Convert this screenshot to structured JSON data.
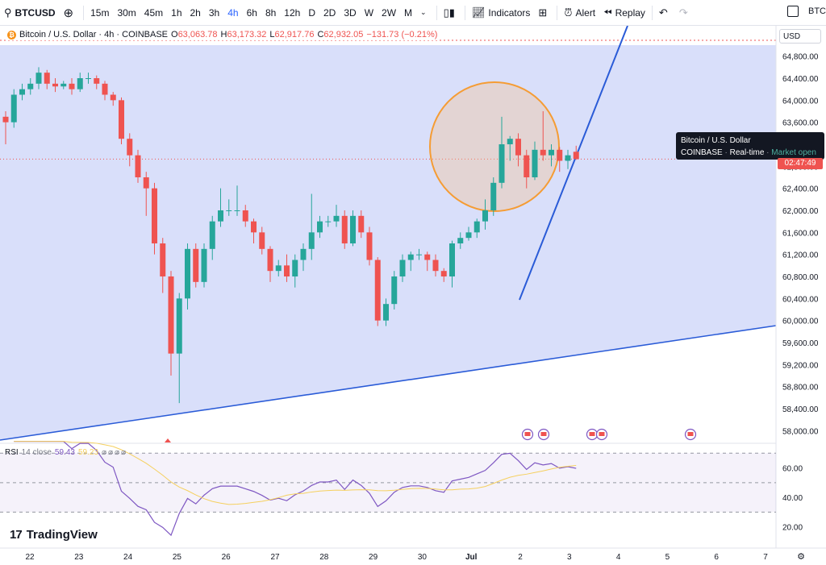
{
  "toolbar": {
    "symbol": "BTCUSD",
    "timeframes": [
      "15m",
      "30m",
      "45m",
      "1h",
      "2h",
      "3h",
      "4h",
      "6h",
      "8h",
      "12h",
      "D",
      "2D",
      "3D",
      "W",
      "2W",
      "M"
    ],
    "active_timeframe": "4h",
    "indicators_label": "Indicators",
    "alert_label": "Alert",
    "replay_label": "Replay",
    "right_label": "BTC"
  },
  "legend": {
    "title": "Bitcoin / U.S. Dollar · 4h · COINBASE",
    "o_label": "O",
    "o_value": "63,063.78",
    "h_label": "H",
    "h_value": "63,173.32",
    "l_label": "L",
    "l_value": "62,917.76",
    "c_label": "C",
    "c_value": "62,932.05",
    "change": "−131.73 (−0.21%)"
  },
  "currency": "USD",
  "tooltip": {
    "line1": "Bitcoin / U.S. Dollar",
    "exchange": "COINBASE",
    "realtime": "Real-time",
    "status": "Market open"
  },
  "price_tag": "02:47:49",
  "rsi": {
    "label": "RSI",
    "params": "14 close",
    "value1": "59.43",
    "value2": "59.23"
  },
  "brand": "TradingView",
  "colors": {
    "up": "#26a69a",
    "down": "#ef5350",
    "channel": "#2a5bd7",
    "fill": "#d5dcfa",
    "circle": "#f59c34",
    "rsi": "#7e57c2",
    "rsi_ma": "#f5d05e"
  },
  "chart_data": {
    "type": "candlestick",
    "price_axis": [
      "64,800.00",
      "64,400.00",
      "64,000.00",
      "63,600.00",
      "63,200.00",
      "62,800.00",
      "62,400.00",
      "62,000.00",
      "61,600.00",
      "61,200.00",
      "60,800.00",
      "60,400.00",
      "60,000.00",
      "59,600.00",
      "59,200.00",
      "58,800.00",
      "58,400.00",
      "58,000.00"
    ],
    "ylim": [
      57800,
      65000
    ],
    "x_ticks": [
      "22",
      "23",
      "24",
      "25",
      "26",
      "27",
      "28",
      "29",
      "30",
      "Jul",
      "2",
      "3",
      "4",
      "5",
      "6",
      "7"
    ],
    "candles": [
      [
        63700,
        63600,
        63200,
        63800
      ],
      [
        63600,
        64100,
        63500,
        64200
      ],
      [
        64100,
        64200,
        64000,
        64300
      ],
      [
        64200,
        64300,
        64100,
        64400
      ],
      [
        64300,
        64500,
        64200,
        64600
      ],
      [
        64500,
        64300,
        64200,
        64550
      ],
      [
        64300,
        64250,
        64150,
        64400
      ],
      [
        64250,
        64300,
        64200,
        64350
      ],
      [
        64300,
        64200,
        64100,
        64400
      ],
      [
        64200,
        64400,
        64150,
        64500
      ],
      [
        64400,
        64400,
        64300,
        64500
      ],
      [
        64400,
        64300,
        64200,
        64450
      ],
      [
        64300,
        64100,
        64000,
        64350
      ],
      [
        64100,
        64000,
        63900,
        64150
      ],
      [
        64000,
        63300,
        63200,
        64050
      ],
      [
        63300,
        63000,
        62800,
        63400
      ],
      [
        63000,
        62600,
        62500,
        63100
      ],
      [
        62600,
        62400,
        61900,
        62700
      ],
      [
        62400,
        61400,
        61200,
        62500
      ],
      [
        61400,
        60800,
        60500,
        61500
      ],
      [
        60800,
        59400,
        59000,
        60900
      ],
      [
        59400,
        60400,
        58500,
        60500
      ],
      [
        60400,
        61300,
        60200,
        61400
      ],
      [
        61300,
        60700,
        60600,
        61400
      ],
      [
        60700,
        61300,
        60600,
        61400
      ],
      [
        61300,
        61800,
        61100,
        61900
      ],
      [
        61800,
        62000,
        61700,
        62400
      ],
      [
        62000,
        62000,
        61900,
        62200
      ],
      [
        62000,
        62000,
        61900,
        62450
      ],
      [
        62000,
        61800,
        61700,
        62100
      ],
      [
        61800,
        61600,
        61400,
        61850
      ],
      [
        61600,
        61300,
        61200,
        61700
      ],
      [
        61300,
        60900,
        60700,
        61350
      ],
      [
        60900,
        61000,
        60800,
        61100
      ],
      [
        61000,
        60800,
        60700,
        61200
      ],
      [
        60800,
        61100,
        60600,
        61200
      ],
      [
        61100,
        61300,
        60900,
        61400
      ],
      [
        61300,
        61600,
        61100,
        62300
      ],
      [
        61600,
        61800,
        61500,
        61900
      ],
      [
        61800,
        61800,
        61700,
        61900
      ],
      [
        61800,
        61900,
        61700,
        62100
      ],
      [
        61900,
        61400,
        61300,
        62000
      ],
      [
        61400,
        61900,
        61350,
        62000
      ],
      [
        61900,
        61600,
        61500,
        62000
      ],
      [
        61600,
        61100,
        61000,
        61700
      ],
      [
        61100,
        60000,
        59900,
        61150
      ],
      [
        60000,
        60300,
        59900,
        60400
      ],
      [
        60300,
        60800,
        60200,
        60900
      ],
      [
        60800,
        61100,
        60700,
        61200
      ],
      [
        61100,
        61200,
        60900,
        61250
      ],
      [
        61200,
        61200,
        61100,
        61300
      ],
      [
        61200,
        61100,
        60900,
        61250
      ],
      [
        61100,
        60900,
        60800,
        61200
      ],
      [
        60900,
        60800,
        60700,
        60950
      ],
      [
        60800,
        61400,
        60600,
        61450
      ],
      [
        61400,
        61500,
        61300,
        61600
      ],
      [
        61500,
        61600,
        61450,
        61700
      ],
      [
        61600,
        61800,
        61500,
        61850
      ],
      [
        61800,
        62000,
        61650,
        62200
      ],
      [
        62000,
        62500,
        61900,
        62600
      ],
      [
        62500,
        63200,
        62400,
        63700
      ],
      [
        63200,
        63300,
        62900,
        63350
      ],
      [
        63300,
        63000,
        62800,
        63400
      ],
      [
        63000,
        62600,
        62400,
        63100
      ],
      [
        62600,
        63100,
        62550,
        63250
      ],
      [
        63100,
        63000,
        62900,
        63800
      ],
      [
        63000,
        63100,
        62800,
        63200
      ],
      [
        63100,
        62900,
        62700,
        63150
      ],
      [
        62900,
        63000,
        62750,
        63100
      ],
      [
        63063.78,
        62932.05,
        62917.76,
        63173.32
      ]
    ],
    "rsi_axis": [
      "60.00",
      "40.00",
      "20.00"
    ],
    "rsi_ylim": [
      10,
      80
    ]
  }
}
